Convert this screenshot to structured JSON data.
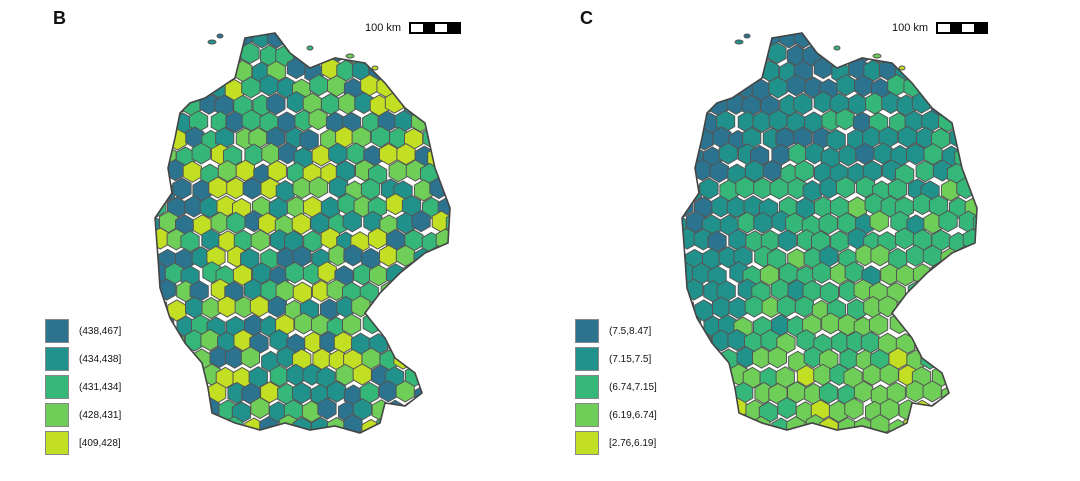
{
  "panels": [
    {
      "label": "B",
      "scalebar": "100 km",
      "legend": [
        {
          "label": "(438,467]",
          "color": "#2b738e"
        },
        {
          "label": "(434,438]",
          "color": "#21918c"
        },
        {
          "label": "(431,434]",
          "color": "#35b779"
        },
        {
          "label": "(428,431]",
          "color": "#6ece58"
        },
        {
          "label": "[409,428]",
          "color": "#c2df23"
        }
      ],
      "pattern": "mixed"
    },
    {
      "label": "C",
      "scalebar": "100 km",
      "legend": [
        {
          "label": "(7.5,8.47]",
          "color": "#2b738e"
        },
        {
          "label": "(7.15,7.5]",
          "color": "#21918c"
        },
        {
          "label": "(6.74,7.15]",
          "color": "#35b779"
        },
        {
          "label": "(6.19,6.74]",
          "color": "#6ece58"
        },
        {
          "label": "[2.76,6.19]",
          "color": "#c2df23"
        }
      ],
      "pattern": "gradient"
    }
  ],
  "map_colors": {
    "border": "#555555",
    "outline": "#444444"
  }
}
